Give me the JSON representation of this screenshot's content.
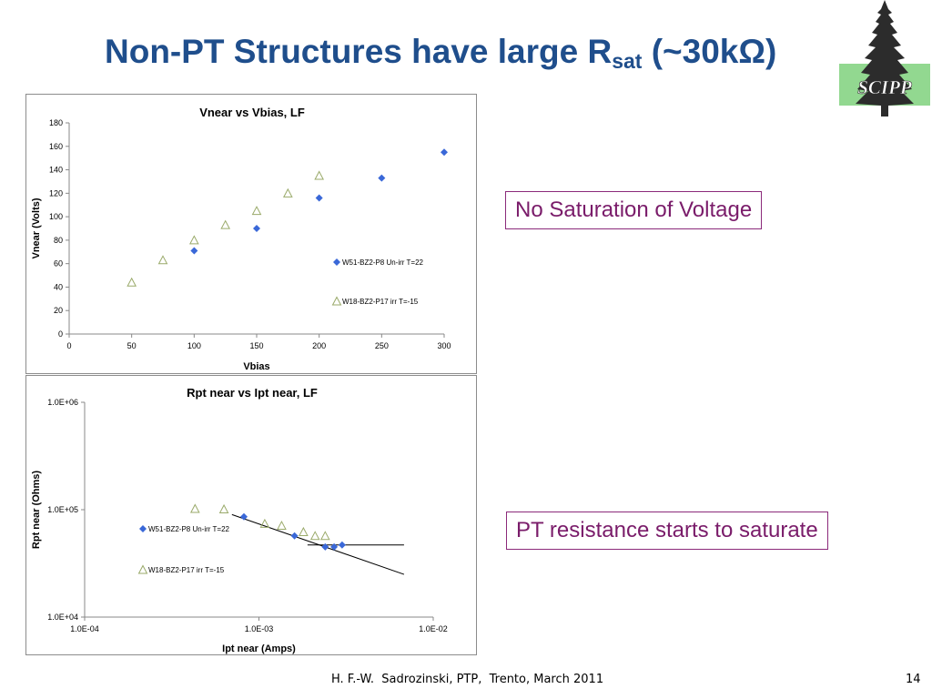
{
  "slide": {
    "title_main": "Non-PT Structures have large R",
    "title_sub": "sat",
    "title_tail": " (~30kΩ)",
    "callout_1": "No Saturation of Voltage",
    "callout_2": "PT resistance starts to saturate",
    "footer": "H. F.-W.  Sadrozinski, PTP,  Trento, March 2011",
    "slide_number": "14",
    "logo_text": "SCIPP",
    "colors": {
      "title": "#1f4e8c",
      "callout_border": "#8b2a7a",
      "callout_text": "#7a1c6a",
      "series_diamond": "#3a68d8",
      "series_triangle": "#9aaa6a",
      "logo_bg": "#92d890",
      "logo_tree": "#2c2c2c",
      "logo_text": "#ffffff"
    },
    "logo_icon": "pine-tree-icon"
  },
  "chart_data": [
    {
      "type": "scatter",
      "title": "Vnear vs Vbias, LF",
      "xlabel": "Vbias",
      "ylabel": "Vnear (Volts)",
      "xlim": [
        0,
        300
      ],
      "ylim": [
        0,
        180
      ],
      "xticks": [
        0,
        50,
        100,
        150,
        200,
        250,
        300
      ],
      "yticks": [
        0,
        20,
        40,
        60,
        80,
        100,
        120,
        140,
        160,
        180
      ],
      "xscale": "linear",
      "yscale": "linear",
      "grid": false,
      "legend_position": "right",
      "series": [
        {
          "name": "W51-BZ2-P8 Un-irr T=22",
          "marker": "diamond",
          "points": [
            [
              100,
              71
            ],
            [
              150,
              90
            ],
            [
              200,
              116
            ],
            [
              250,
              133
            ],
            [
              300,
              155
            ]
          ]
        },
        {
          "name": "W18-BZ2-P17 irr T=-15",
          "marker": "triangle",
          "points": [
            [
              50,
              44
            ],
            [
              75,
              63
            ],
            [
              100,
              80
            ],
            [
              125,
              93
            ],
            [
              150,
              105
            ],
            [
              175,
              120
            ],
            [
              200,
              135
            ]
          ]
        }
      ]
    },
    {
      "type": "scatter",
      "title": "Rpt near vs Ipt near, LF",
      "xlabel": "Ipt near (Amps)",
      "ylabel": "Rpt near (Ohms)",
      "xlim": [
        0.0001,
        0.01
      ],
      "ylim": [
        10000,
        1000000
      ],
      "xticks": [
        0.0001,
        0.001,
        0.01
      ],
      "xtick_labels": [
        "1.0E-04",
        "1.0E-03",
        "1.0E-02"
      ],
      "yticks": [
        10000,
        100000,
        1000000
      ],
      "ytick_labels": [
        "1.0E+04",
        "1.0E+05",
        "1.0E+06"
      ],
      "xscale": "log",
      "yscale": "log",
      "grid": false,
      "legend_position": "left",
      "series": [
        {
          "name": "W51-BZ2-P8 Un-irr T=22",
          "marker": "diamond",
          "points": [
            [
              0.00082,
              86000
            ],
            [
              0.0016,
              57000
            ],
            [
              0.0024,
              45000
            ],
            [
              0.0027,
              45000
            ],
            [
              0.003,
              47000
            ]
          ]
        },
        {
          "name": "W18-BZ2-P17 irr T=-15",
          "marker": "triangle",
          "points": [
            [
              0.00043,
              102000
            ],
            [
              0.00063,
              101000
            ],
            [
              0.00108,
              74000
            ],
            [
              0.00135,
              71000
            ],
            [
              0.0018,
              62000
            ],
            [
              0.0021,
              57000
            ],
            [
              0.0024,
              57000
            ]
          ]
        }
      ],
      "lines": [
        {
          "points": [
            [
              0.0007,
              90000
            ],
            [
              0.0068,
              25000
            ]
          ]
        },
        {
          "points": [
            [
              0.0019,
              47000
            ],
            [
              0.0068,
              47000
            ]
          ]
        }
      ]
    }
  ]
}
